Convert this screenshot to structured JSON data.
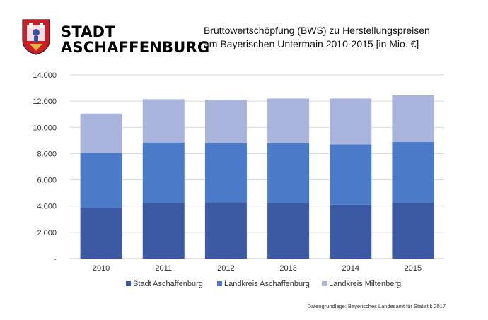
{
  "brand": {
    "line1": "STADT",
    "line2": "ASCHAFFENBURG",
    "logo_icon": "coat-of-arms-icon"
  },
  "title": {
    "line1": "Bruttowertschöpfung (BWS) zu Herstellungspreisen",
    "line2": "am Bayerischen Untermain 2010-2015 [in Mio. €]"
  },
  "source": "Datengrundlage: Bayerisches Landesamt für Statistik 2017",
  "chart_data": {
    "type": "bar",
    "stacked": true,
    "categories": [
      "2010",
      "2011",
      "2012",
      "2013",
      "2014",
      "2015"
    ],
    "series": [
      {
        "name": "Stadt Aschaffenburg",
        "color": "#3b5aa3",
        "values": [
          3850,
          4200,
          4300,
          4200,
          4100,
          4250
        ]
      },
      {
        "name": "Landkreis Aschaffenburg",
        "color": "#4a7ac8",
        "values": [
          4200,
          4650,
          4500,
          4600,
          4600,
          4650
        ]
      },
      {
        "name": "Landkreis Miltenberg",
        "color": "#a9b5dc",
        "values": [
          3000,
          3300,
          3300,
          3400,
          3500,
          3550
        ]
      }
    ],
    "ylim": [
      0,
      14000
    ],
    "yticks": [
      0,
      2000,
      4000,
      6000,
      8000,
      10000,
      12000,
      14000
    ],
    "ytick_labels": [
      "-",
      "2.000",
      "4.000",
      "6.000",
      "8.000",
      "10.000",
      "12.000",
      "14.000"
    ],
    "grid": true,
    "legend": "bottom"
  }
}
